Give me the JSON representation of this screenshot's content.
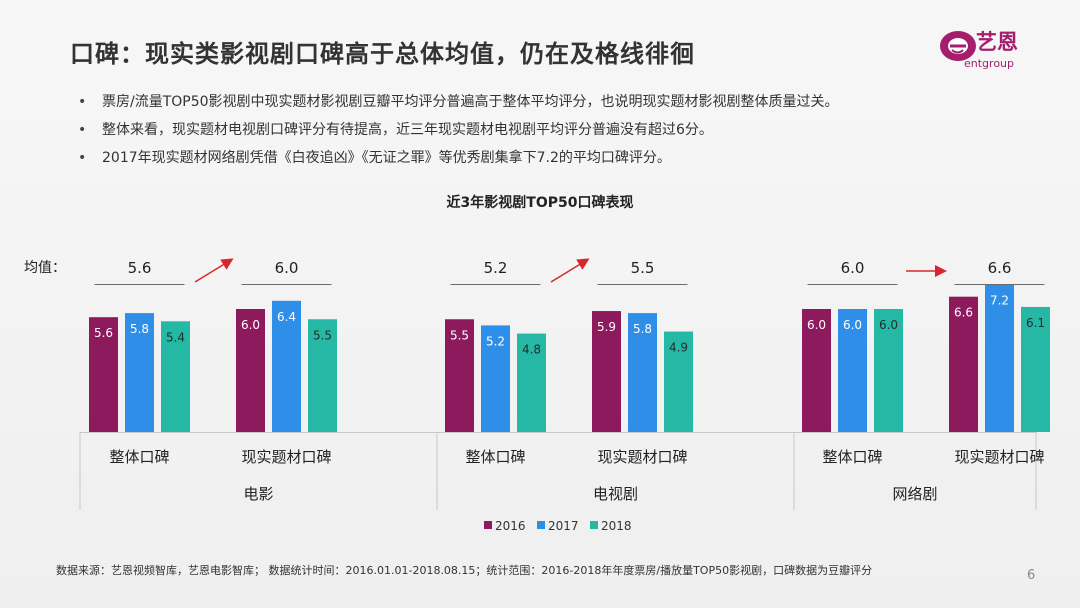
{
  "slide": {
    "title": "口碑：现实类影视剧口碑高于总体均值，仍在及格线徘徊",
    "logo_name": "艺恩",
    "logo_sub": "entgroup",
    "bullets": [
      "票房/流量TOP50影视剧中现实题材影视剧豆瓣平均评分普遍高于整体平均评分，也说明现实题材影视剧整体质量过关。",
      "整体来看，现实题材电视剧口碑评分有待提高，近三年现实题材电视剧平均评分普遍没有超过6分。",
      "2017年现实题材网络剧凭借《白夜追凶》《无证之罪》等优秀剧集拿下7.2的平均口碑评分。"
    ],
    "footer": "数据来源：艺恩视频智库，艺恩电影智库； 数据统计时间：2016.01.01-2018.08.15；统计范围：2016-2018年年度票房/播放量TOP50影视剧，口碑数据为豆瓣评分",
    "page_number": "6",
    "colors": {
      "logo": "#a51d6d",
      "arrow": "#d9262c"
    }
  },
  "chart_data": {
    "type": "bar",
    "title": "近3年影视剧TOP50口碑表现",
    "avg_label": "均值：",
    "ylim": [
      0,
      8
    ],
    "legend_position": "bottom",
    "series_colors": [
      "#8e1a5e",
      "#2f8fe8",
      "#25b8a4"
    ],
    "series_names": [
      "2016",
      "2017",
      "2018"
    ],
    "groups": [
      {
        "name": "电影",
        "subgroups": [
          {
            "name": "整体口碑",
            "values": [
              5.6,
              5.8,
              5.4
            ],
            "avg": "5.6"
          },
          {
            "name": "现实题材口碑",
            "values": [
              6.0,
              6.4,
              5.5
            ],
            "avg": "6.0"
          }
        ],
        "arrow": "up"
      },
      {
        "name": "电视剧",
        "subgroups": [
          {
            "name": "整体口碑",
            "values": [
              5.5,
              5.2,
              4.8
            ],
            "avg": "5.2"
          },
          {
            "name": "现实题材口碑",
            "values": [
              5.9,
              5.8,
              4.9
            ],
            "avg": "5.5"
          }
        ],
        "arrow": "up"
      },
      {
        "name": "网络剧",
        "subgroups": [
          {
            "name": "整体口碑",
            "values": [
              6.0,
              6.0,
              6.0
            ],
            "avg": "6.0"
          },
          {
            "name": "现实题材口碑",
            "values": [
              6.6,
              7.2,
              6.1
            ],
            "avg": "6.6"
          }
        ],
        "arrow": "right"
      }
    ]
  }
}
